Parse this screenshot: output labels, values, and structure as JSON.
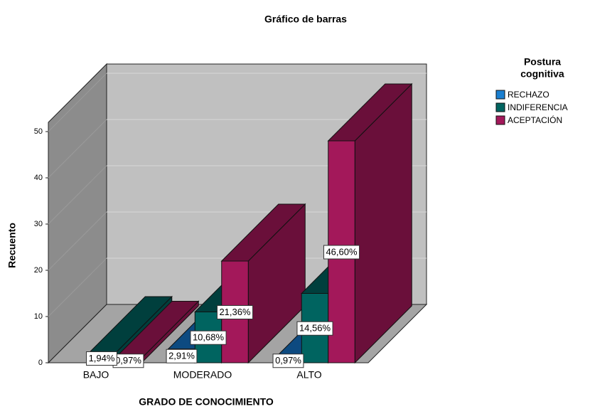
{
  "chart_data": {
    "type": "bar3d",
    "title": "Gráfico de barras",
    "x_label": "GRADO DE CONOCIMIENTO",
    "y_label": "Recuento",
    "legend_title": [
      "Postura",
      "cognitiva"
    ],
    "legend_position": "right",
    "categories": [
      "BAJO",
      "MODERADO",
      "ALTO"
    ],
    "series": [
      {
        "name": "RECHAZO",
        "color": "#1a7fd0",
        "side_color": "#0d4a80",
        "values": [
          null,
          3,
          1
        ],
        "value_labels": [
          null,
          "2,91%",
          "0,97%"
        ]
      },
      {
        "name": "INDIFERENCIA",
        "color": "#006460",
        "side_color": "#003f3d",
        "values": [
          2,
          11,
          15
        ],
        "value_labels": [
          "1,94%",
          "10,68%",
          "14,56%"
        ]
      },
      {
        "name": "ACEPTACIÓN",
        "color": "#a3185a",
        "side_color": "#6a0f3a",
        "values": [
          1,
          22,
          48
        ],
        "value_labels": [
          "0,97%",
          "21,36%",
          "46,60%"
        ]
      }
    ],
    "ylim": [
      0,
      52
    ],
    "yticks": [
      0,
      10,
      20,
      30,
      40,
      50
    ],
    "grid": true
  }
}
